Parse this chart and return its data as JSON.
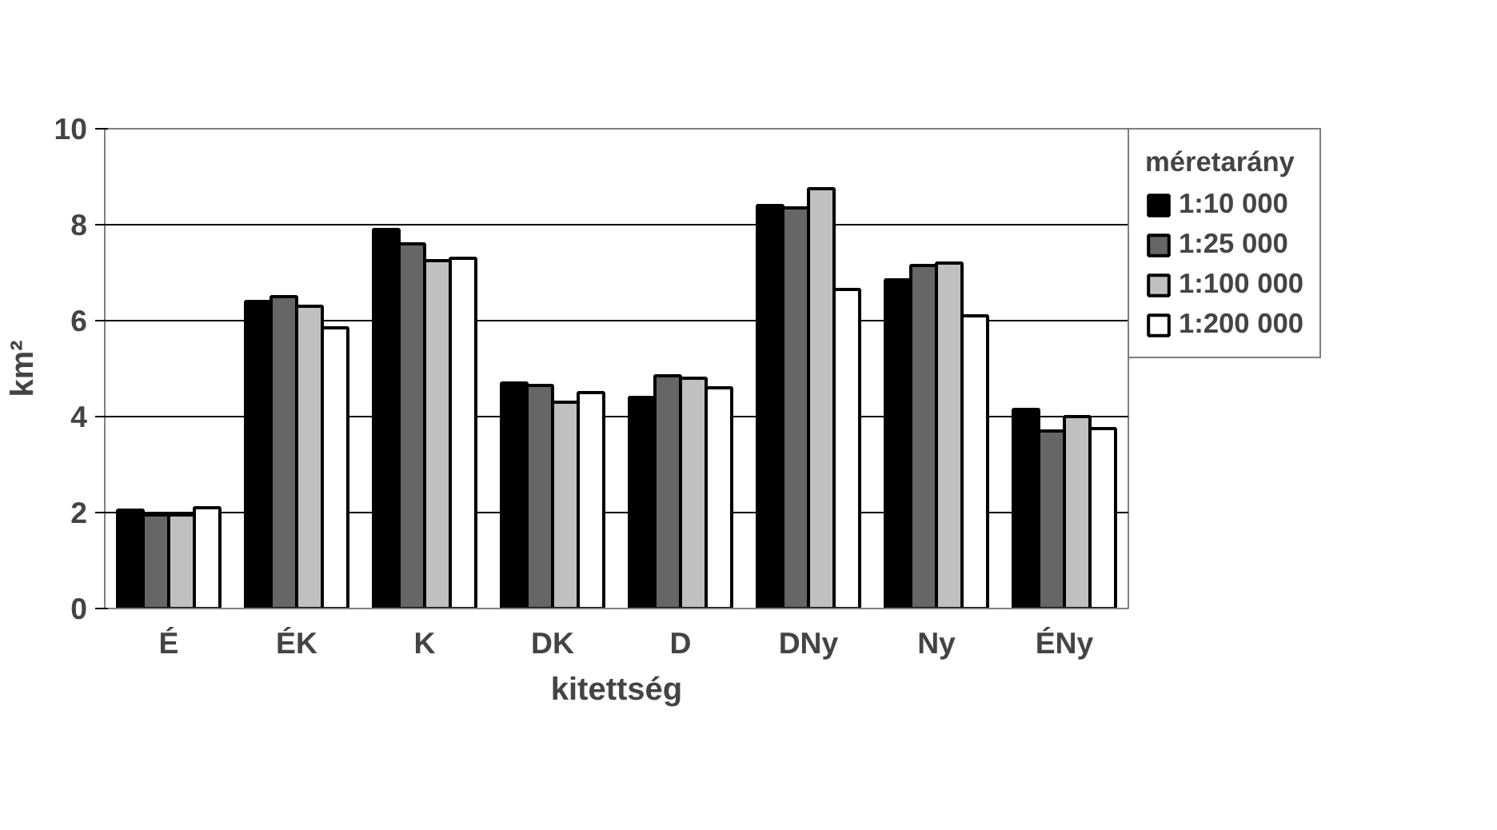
{
  "chart_data": {
    "type": "bar",
    "xlabel": "kitettség",
    "ylabel": "km²",
    "legend_title": "méretarány",
    "categories": [
      "É",
      "ÉK",
      "K",
      "DK",
      "D",
      "DNy",
      "Ny",
      "ÉNy"
    ],
    "series": [
      {
        "name": "1:10 000",
        "color": "#000000",
        "values": [
          2.05,
          6.4,
          7.9,
          4.7,
          4.4,
          8.4,
          6.85,
          4.15
        ]
      },
      {
        "name": "1:25 000",
        "color": "#666666",
        "values": [
          1.95,
          6.5,
          7.6,
          4.65,
          4.85,
          8.35,
          7.15,
          3.7
        ]
      },
      {
        "name": "1:100 000",
        "color": "#c0c0c0",
        "values": [
          1.95,
          6.3,
          7.25,
          4.3,
          4.8,
          8.75,
          7.2,
          4.0
        ]
      },
      {
        "name": "1:200 000",
        "color": "#ffffff",
        "values": [
          2.1,
          5.85,
          7.3,
          4.5,
          4.6,
          6.65,
          6.1,
          3.75
        ]
      }
    ],
    "ylim": [
      0,
      10
    ],
    "yticks": [
      0,
      2,
      4,
      6,
      8,
      10
    ],
    "grid": "y",
    "legend": "top right"
  }
}
